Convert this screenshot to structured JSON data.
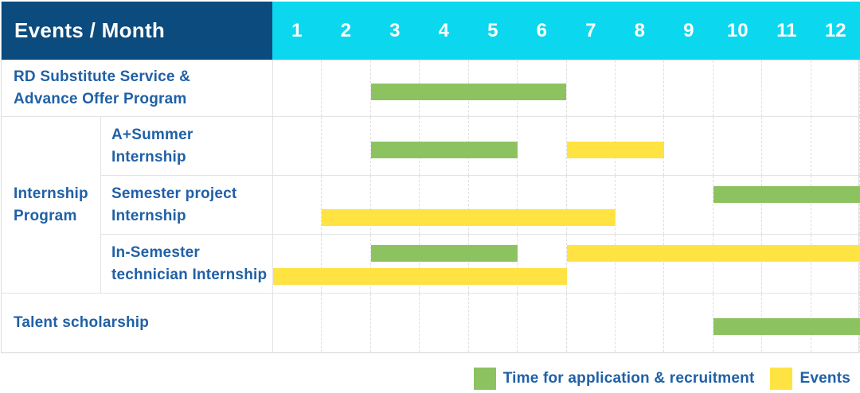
{
  "table": {
    "header_label": "Events / Month"
  },
  "colors": {
    "navy": "#0B4B7E",
    "cyan": "#0BD8EE",
    "blue": "#2060A6",
    "green": "#8CC360",
    "yellow": "#FFE342",
    "line": "#E3E3E3"
  },
  "chart_data": {
    "type": "bar",
    "subtype": "gantt-schedule",
    "title": "Events / Month",
    "x_unit": "month",
    "x_range": [
      1,
      12
    ],
    "x_categories": [
      "1",
      "2",
      "3",
      "4",
      "5",
      "6",
      "7",
      "8",
      "9",
      "10",
      "11",
      "12"
    ],
    "grid": true,
    "legend_position": "bottom-right",
    "rows": [
      {
        "id": "rd-substitute-service",
        "group": null,
        "label": "RD Substitute Service &\nAdvance Offer Program",
        "bars": [
          {
            "series": "application",
            "start_month": 3,
            "end_month": 6,
            "band": "middle"
          }
        ]
      },
      {
        "id": "a-plus-summer-internship",
        "group": "Internship Program",
        "label": "A+Summer\nInternship",
        "bars": [
          {
            "series": "application",
            "start_month": 3,
            "end_month": 5,
            "band": "middle"
          },
          {
            "series": "events",
            "start_month": 7,
            "end_month": 8,
            "band": "middle"
          }
        ]
      },
      {
        "id": "semester-project-internship",
        "group": "Internship Program",
        "label": "Semester project\nInternship",
        "bars": [
          {
            "series": "application",
            "start_month": 10,
            "end_month": 12,
            "band": "top"
          },
          {
            "series": "events",
            "start_month": 2,
            "end_month": 7,
            "band": "bottom"
          }
        ]
      },
      {
        "id": "in-semester-technician-internship",
        "group": "Internship Program",
        "label": "In-Semester\ntechnician Internship",
        "bars": [
          {
            "series": "application",
            "start_month": 3,
            "end_month": 5,
            "band": "top"
          },
          {
            "series": "events",
            "start_month": 7,
            "end_month": 12,
            "band": "top"
          },
          {
            "series": "events",
            "start_month": 1,
            "end_month": 6,
            "band": "bottom"
          }
        ]
      },
      {
        "id": "talent-scholarship",
        "group": null,
        "label": "Talent scholarship",
        "bars": [
          {
            "series": "application",
            "start_month": 10,
            "end_month": 12,
            "band": "middle"
          }
        ]
      }
    ],
    "group_label": "Internship\nProgram",
    "legend": [
      {
        "series": "application",
        "name": "Time for application & recruitment",
        "color": "#8CC360"
      },
      {
        "series": "events",
        "name": "Events",
        "color": "#FFE342"
      }
    ]
  }
}
